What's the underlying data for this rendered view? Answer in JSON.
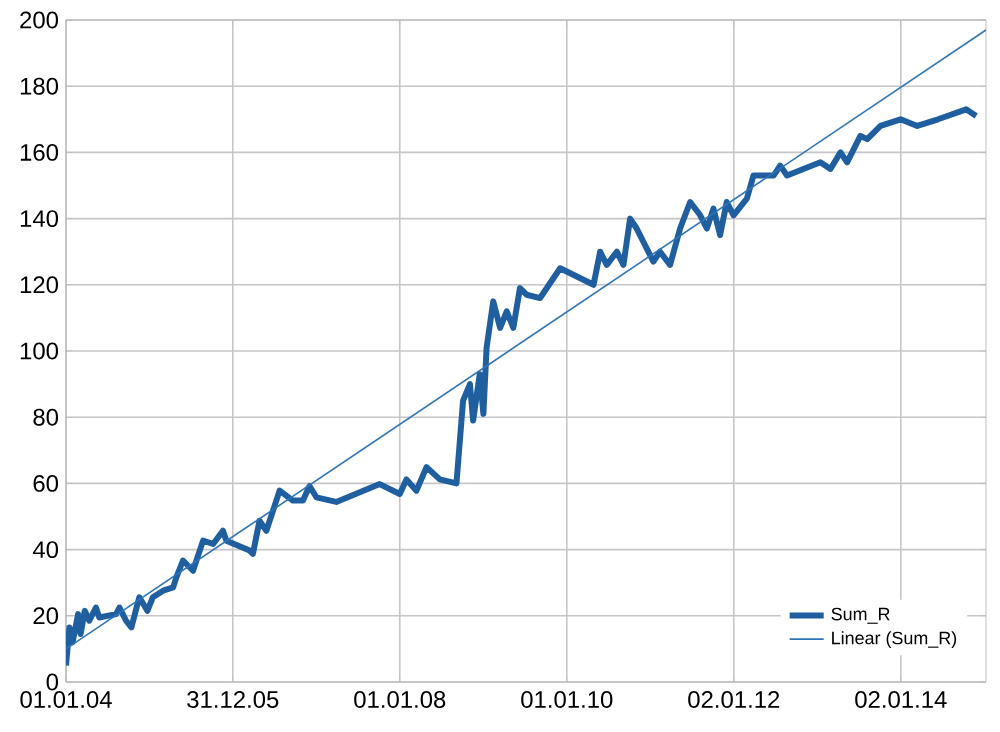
{
  "chart_data": {
    "type": "line",
    "xlim": [
      "2004-01-01",
      "2015-01-10"
    ],
    "xticks": [
      {
        "value": "2004-01-01",
        "label": "01.01.04"
      },
      {
        "value": "2005-12-31",
        "label": "31.12.05"
      },
      {
        "value": "2008-01-01",
        "label": "01.01.08"
      },
      {
        "value": "2010-01-01",
        "label": "01.01.10"
      },
      {
        "value": "2012-01-02",
        "label": "02.01.12"
      },
      {
        "value": "2014-01-02",
        "label": "02.01.14"
      }
    ],
    "ylim": [
      0,
      200
    ],
    "yticks": [
      0,
      20,
      40,
      60,
      80,
      100,
      120,
      140,
      160,
      180,
      200
    ],
    "grid": true,
    "legend": "bottom right",
    "marker": "none",
    "line_style": "solid",
    "series": [
      {
        "name": "Sum_R",
        "color": "#1f5fa0",
        "x": [
          "2004-01-01",
          "2004-01-16",
          "2004-01-30",
          "2004-02-23",
          "2004-03-05",
          "2004-03-23",
          "2004-04-12",
          "2004-05-11",
          "2004-05-26",
          "2004-08-07",
          "2004-08-22",
          "2004-09-20",
          "2004-10-13",
          "2004-11-17",
          "2004-12-22",
          "2005-01-15",
          "2005-03-01",
          "2005-04-14",
          "2005-04-28",
          "2005-05-27",
          "2005-07-10",
          "2005-08-23",
          "2005-10-06",
          "2005-11-18",
          "2005-12-03",
          "2006-03-15",
          "2006-03-29",
          "2006-04-27",
          "2006-05-27",
          "2006-07-24",
          "2006-09-20",
          "2006-11-03",
          "2006-12-02",
          "2007-01-01",
          "2007-03-29",
          "2007-10-05",
          "2008-01-01",
          "2008-01-30",
          "2008-03-14",
          "2008-04-27",
          "2008-06-24",
          "2008-09-05",
          "2008-10-04",
          "2008-11-03",
          "2008-11-17",
          "2008-12-16",
          "2009-01-01",
          "2009-01-15",
          "2009-02-13",
          "2009-03-15",
          "2009-04-13",
          "2009-05-12",
          "2009-06-10",
          "2009-07-09",
          "2009-09-06",
          "2009-12-03",
          "2010-04-28",
          "2010-05-27",
          "2010-06-25",
          "2010-08-08",
          "2010-09-06",
          "2010-10-05",
          "2010-11-03",
          "2011-01-15",
          "2011-02-13",
          "2011-03-29",
          "2011-05-12",
          "2011-06-25",
          "2011-08-08",
          "2011-09-06",
          "2011-10-05",
          "2011-11-03",
          "2011-12-02",
          "2012-01-01",
          "2012-02-28",
          "2012-03-28",
          "2012-06-24",
          "2012-07-23",
          "2012-08-22",
          "2013-01-15",
          "2013-02-28",
          "2013-04-13",
          "2013-05-12",
          "2013-07-09",
          "2013-08-08",
          "2013-10-05",
          "2014-01-01",
          "2014-03-15",
          "2014-06-14",
          "2014-10-15",
          "2014-11-28"
        ],
        "values": [
          5,
          16.5,
          12,
          20.5,
          14.5,
          21.5,
          18.5,
          22.5,
          19.5,
          20.5,
          22.5,
          18.5,
          16.5,
          25.6,
          21.5,
          25.6,
          27.6,
          28.6,
          31.6,
          36.7,
          33.6,
          42.7,
          41.7,
          45.7,
          42.7,
          39.7,
          38.7,
          48.7,
          45.7,
          57.8,
          54.8,
          54.8,
          59.2,
          55.8,
          54.4,
          59.8,
          56.8,
          61.2,
          57.8,
          64.9,
          61.2,
          60,
          85,
          90,
          79,
          93,
          81,
          101,
          115,
          107,
          112,
          107,
          119,
          117,
          116,
          125,
          120,
          130,
          126,
          130,
          126,
          140,
          137,
          127,
          130,
          126,
          137,
          145,
          141,
          137,
          143,
          135,
          145,
          141,
          146,
          153,
          153,
          156,
          153,
          157,
          155,
          160,
          157,
          165,
          164,
          168,
          170,
          168,
          170,
          173,
          171
        ]
      },
      {
        "name": "Linear (Sum_R)",
        "color": "#2e75b6",
        "type": "line",
        "x": [
          "2004-01-01",
          "2015-01-10"
        ],
        "values": [
          10,
          197
        ]
      }
    ]
  }
}
